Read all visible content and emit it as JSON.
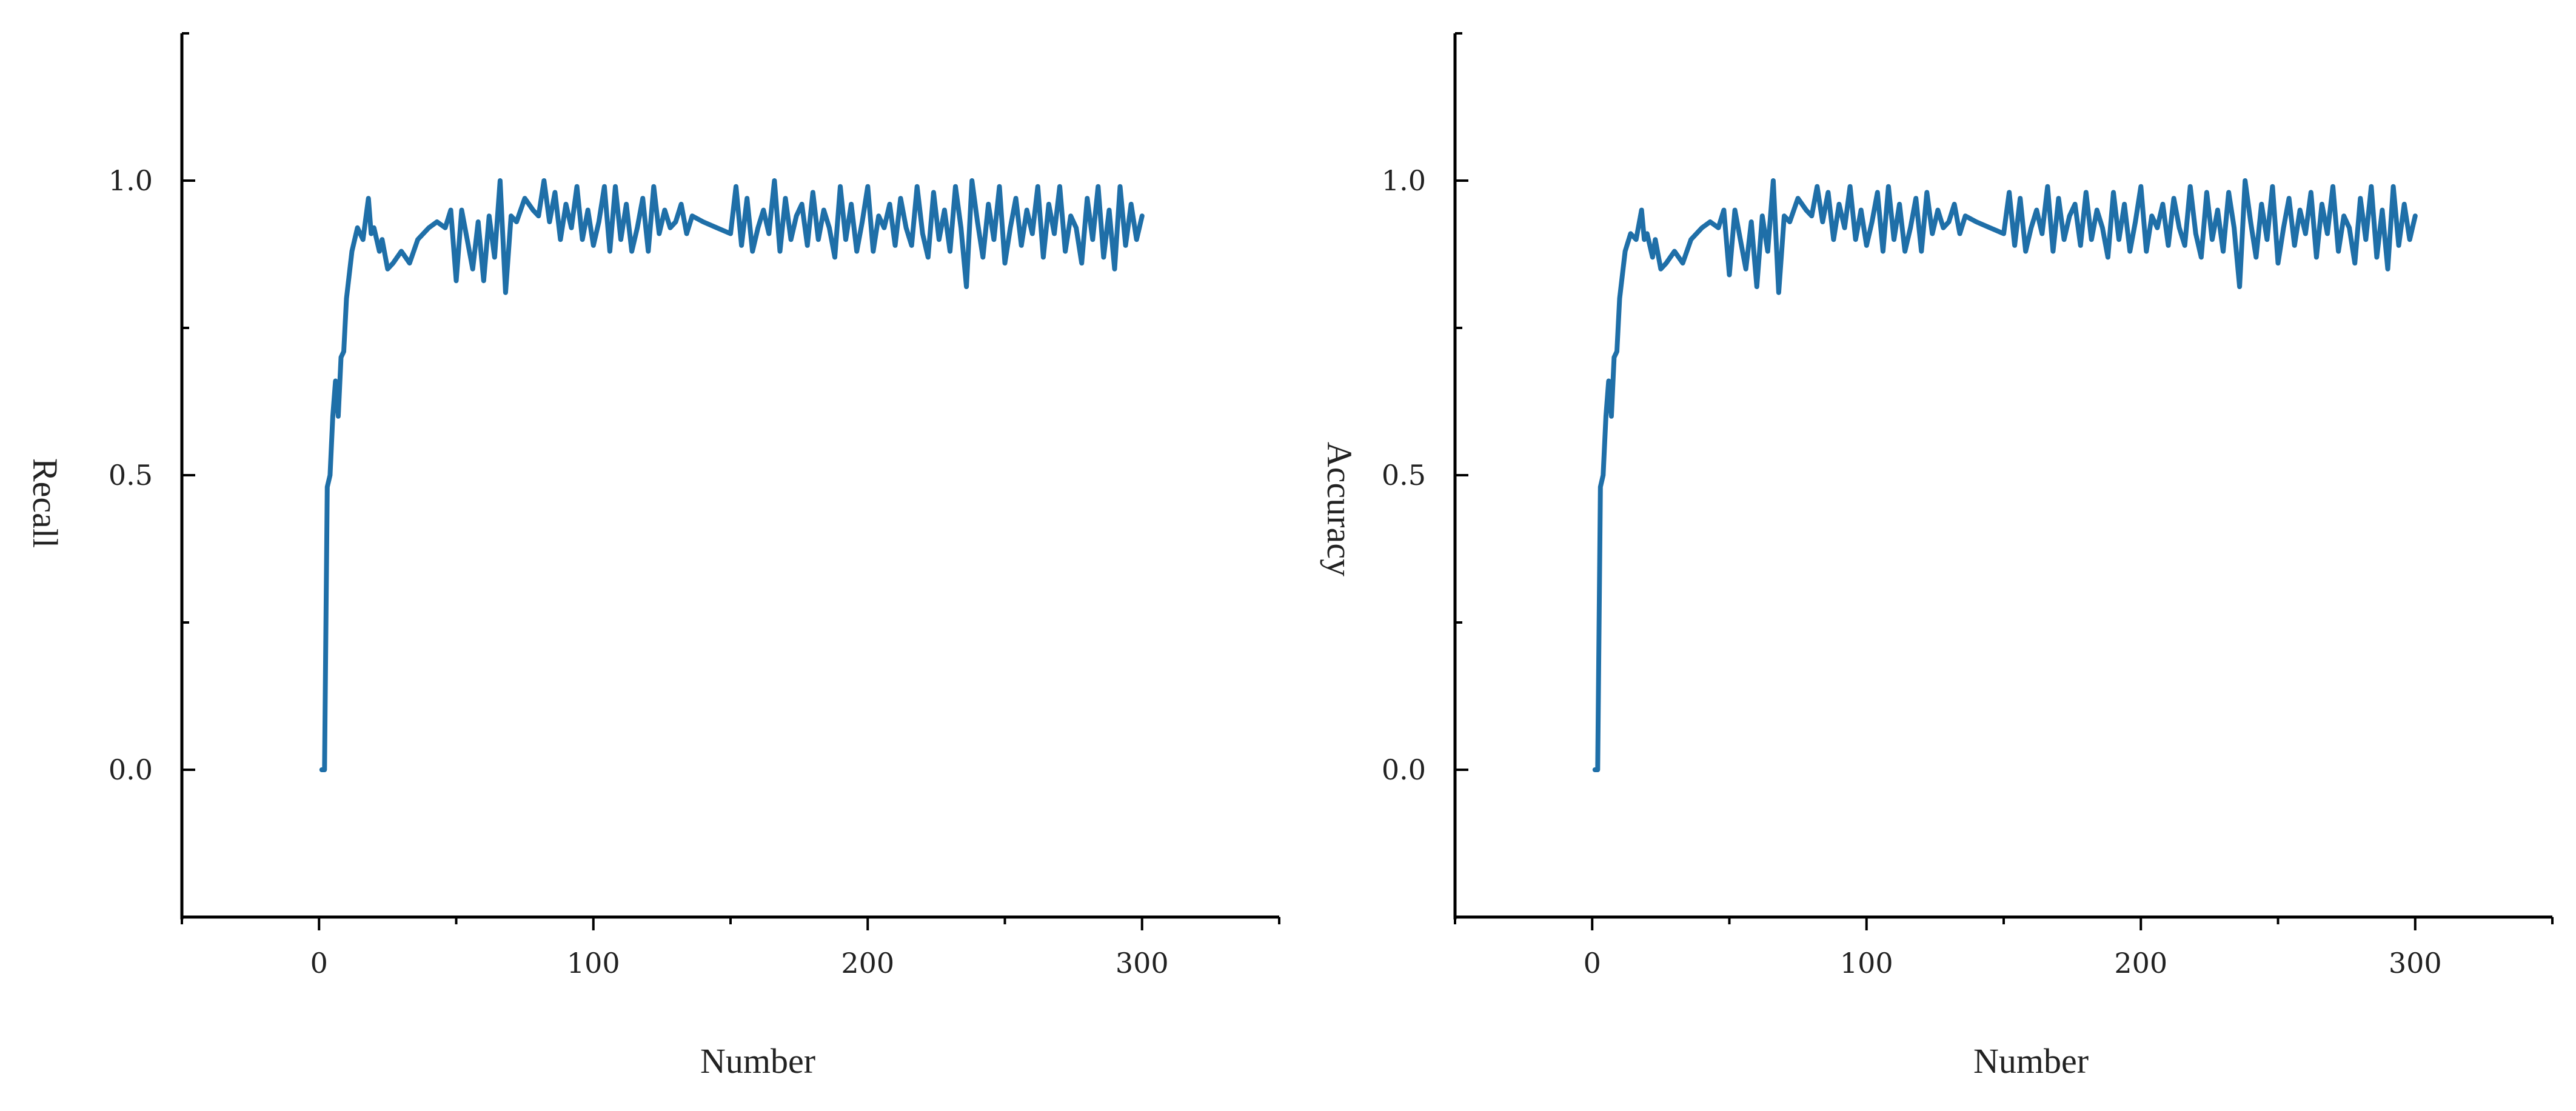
{
  "chart_data": [
    {
      "type": "line",
      "xlabel": "Number",
      "ylabel": "Recall",
      "xlim": [
        -50,
        350
      ],
      "ylim": [
        -0.25,
        1.25
      ],
      "xticks": [
        0,
        100,
        200,
        300
      ],
      "xtick_labels": [
        "0",
        "100",
        "200",
        "300"
      ],
      "yticks": [
        0,
        0.5,
        1
      ],
      "ytick_labels": [
        "0.0",
        "0.5",
        "1.0"
      ],
      "grid": false,
      "color": "#1f6fa8",
      "series": [
        {
          "x": [
            1,
            2,
            3,
            4,
            5,
            6,
            7,
            8,
            9,
            10,
            12,
            14,
            16,
            18,
            19,
            20,
            22,
            23,
            25,
            27,
            30,
            33,
            36,
            40,
            43,
            46,
            48,
            50,
            52,
            54,
            56,
            58,
            60,
            62,
            64,
            66,
            68,
            70,
            72,
            75,
            78,
            80,
            82,
            84,
            86,
            88,
            90,
            92,
            94,
            96,
            98,
            100,
            102,
            104,
            106,
            108,
            110,
            112,
            114,
            116,
            118,
            120,
            122,
            124,
            126,
            128,
            130,
            132,
            134,
            136,
            140,
            145,
            150,
            152,
            154,
            156,
            158,
            160,
            162,
            164,
            166,
            168,
            170,
            172,
            174,
            176,
            178,
            180,
            182,
            184,
            186,
            188,
            190,
            192,
            194,
            196,
            198,
            200,
            202,
            204,
            206,
            208,
            210,
            212,
            214,
            216,
            218,
            220,
            222,
            224,
            226,
            228,
            230,
            232,
            234,
            236,
            238,
            240,
            242,
            244,
            246,
            248,
            250,
            252,
            254,
            256,
            258,
            260,
            262,
            264,
            266,
            268,
            270,
            272,
            274,
            276,
            278,
            280,
            282,
            284,
            286,
            288,
            290,
            292,
            294,
            296,
            298,
            300
          ],
          "y": [
            0.0,
            0.0,
            0.48,
            0.5,
            0.6,
            0.66,
            0.6,
            0.7,
            0.71,
            0.8,
            0.88,
            0.92,
            0.9,
            0.97,
            0.91,
            0.92,
            0.88,
            0.9,
            0.85,
            0.86,
            0.88,
            0.86,
            0.9,
            0.92,
            0.93,
            0.92,
            0.95,
            0.83,
            0.95,
            0.9,
            0.85,
            0.93,
            0.83,
            0.94,
            0.87,
            1.0,
            0.81,
            0.94,
            0.93,
            0.97,
            0.95,
            0.94,
            1.0,
            0.93,
            0.98,
            0.9,
            0.96,
            0.92,
            0.99,
            0.9,
            0.95,
            0.89,
            0.93,
            0.99,
            0.88,
            0.99,
            0.9,
            0.96,
            0.88,
            0.92,
            0.97,
            0.88,
            0.99,
            0.91,
            0.95,
            0.92,
            0.93,
            0.96,
            0.91,
            0.94,
            0.93,
            0.92,
            0.91,
            0.99,
            0.89,
            0.97,
            0.88,
            0.92,
            0.95,
            0.91,
            1.0,
            0.88,
            0.97,
            0.9,
            0.94,
            0.96,
            0.89,
            0.98,
            0.9,
            0.95,
            0.92,
            0.87,
            0.99,
            0.9,
            0.96,
            0.88,
            0.93,
            0.99,
            0.88,
            0.94,
            0.92,
            0.96,
            0.89,
            0.97,
            0.92,
            0.89,
            0.99,
            0.91,
            0.87,
            0.98,
            0.9,
            0.95,
            0.88,
            0.99,
            0.92,
            0.82,
            1.0,
            0.93,
            0.87,
            0.96,
            0.9,
            0.99,
            0.86,
            0.92,
            0.97,
            0.89,
            0.95,
            0.91,
            0.99,
            0.87,
            0.96,
            0.91,
            0.99,
            0.88,
            0.94,
            0.92,
            0.86,
            0.97,
            0.9,
            0.99,
            0.87,
            0.95,
            0.85,
            0.99,
            0.89,
            0.96,
            0.9,
            0.94
          ]
        }
      ]
    },
    {
      "type": "line",
      "xlabel": "Number",
      "ylabel": "Accuracy",
      "xlim": [
        -50,
        350
      ],
      "ylim": [
        -0.25,
        1.25
      ],
      "xticks": [
        0,
        100,
        200,
        300
      ],
      "xtick_labels": [
        "0",
        "100",
        "200",
        "300"
      ],
      "yticks": [
        0,
        0.5,
        1
      ],
      "ytick_labels": [
        "0.0",
        "0.5",
        "1.0"
      ],
      "grid": false,
      "color": "#1f6fa8",
      "series": [
        {
          "x": [
            1,
            2,
            3,
            4,
            5,
            6,
            7,
            8,
            9,
            10,
            12,
            14,
            16,
            18,
            19,
            20,
            22,
            23,
            25,
            27,
            30,
            33,
            36,
            40,
            43,
            46,
            48,
            50,
            52,
            54,
            56,
            58,
            60,
            62,
            64,
            66,
            68,
            70,
            72,
            75,
            78,
            80,
            82,
            84,
            86,
            88,
            90,
            92,
            94,
            96,
            98,
            100,
            102,
            104,
            106,
            108,
            110,
            112,
            114,
            116,
            118,
            120,
            122,
            124,
            126,
            128,
            130,
            132,
            134,
            136,
            140,
            145,
            150,
            152,
            154,
            156,
            158,
            160,
            162,
            164,
            166,
            168,
            170,
            172,
            174,
            176,
            178,
            180,
            182,
            184,
            186,
            188,
            190,
            192,
            194,
            196,
            198,
            200,
            202,
            204,
            206,
            208,
            210,
            212,
            214,
            216,
            218,
            220,
            222,
            224,
            226,
            228,
            230,
            232,
            234,
            236,
            238,
            240,
            242,
            244,
            246,
            248,
            250,
            252,
            254,
            256,
            258,
            260,
            262,
            264,
            266,
            268,
            270,
            272,
            274,
            276,
            278,
            280,
            282,
            284,
            286,
            288,
            290,
            292,
            294,
            296,
            298,
            300
          ],
          "y": [
            0.0,
            0.0,
            0.48,
            0.5,
            0.6,
            0.66,
            0.6,
            0.7,
            0.71,
            0.8,
            0.88,
            0.91,
            0.9,
            0.95,
            0.9,
            0.91,
            0.87,
            0.9,
            0.85,
            0.86,
            0.88,
            0.86,
            0.9,
            0.92,
            0.93,
            0.92,
            0.95,
            0.84,
            0.95,
            0.9,
            0.85,
            0.93,
            0.82,
            0.94,
            0.88,
            1.0,
            0.81,
            0.94,
            0.93,
            0.97,
            0.95,
            0.94,
            0.99,
            0.93,
            0.98,
            0.9,
            0.96,
            0.92,
            0.99,
            0.9,
            0.95,
            0.89,
            0.93,
            0.98,
            0.88,
            0.99,
            0.9,
            0.96,
            0.88,
            0.92,
            0.97,
            0.88,
            0.98,
            0.91,
            0.95,
            0.92,
            0.93,
            0.96,
            0.91,
            0.94,
            0.93,
            0.92,
            0.91,
            0.98,
            0.89,
            0.97,
            0.88,
            0.92,
            0.95,
            0.91,
            0.99,
            0.88,
            0.97,
            0.9,
            0.94,
            0.96,
            0.89,
            0.98,
            0.9,
            0.95,
            0.92,
            0.87,
            0.98,
            0.9,
            0.96,
            0.88,
            0.93,
            0.99,
            0.88,
            0.94,
            0.92,
            0.96,
            0.89,
            0.97,
            0.92,
            0.89,
            0.99,
            0.91,
            0.87,
            0.98,
            0.9,
            0.95,
            0.88,
            0.98,
            0.92,
            0.82,
            1.0,
            0.93,
            0.87,
            0.96,
            0.9,
            0.99,
            0.86,
            0.92,
            0.97,
            0.89,
            0.95,
            0.91,
            0.98,
            0.87,
            0.96,
            0.91,
            0.99,
            0.88,
            0.94,
            0.92,
            0.86,
            0.97,
            0.9,
            0.99,
            0.87,
            0.95,
            0.85,
            0.99,
            0.89,
            0.96,
            0.9,
            0.94
          ]
        }
      ]
    }
  ]
}
